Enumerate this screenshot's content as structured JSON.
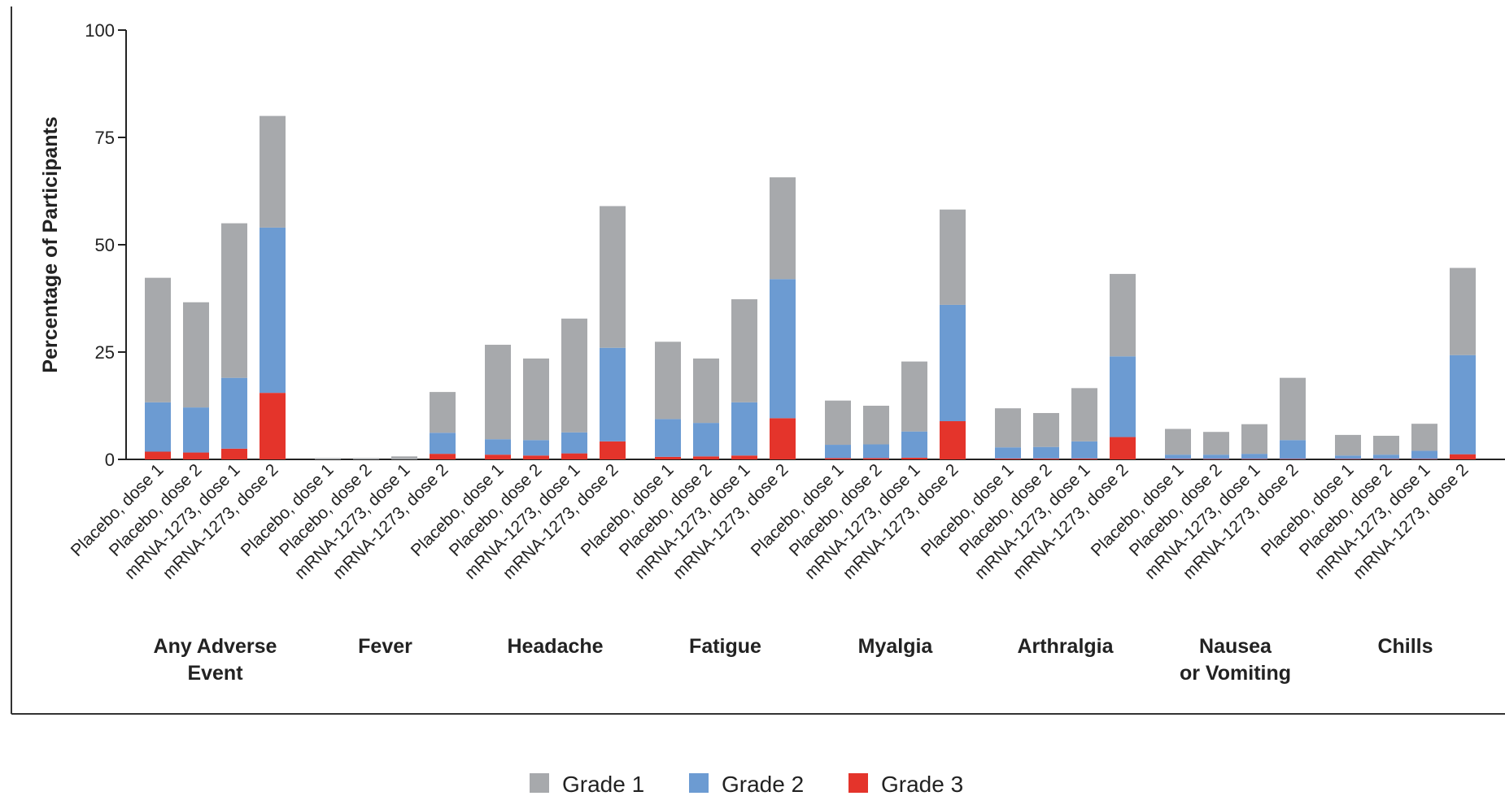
{
  "chart_data": {
    "type": "bar",
    "stacked": true,
    "ylabel": "Percentage of Participants",
    "ylim": [
      0,
      100
    ],
    "yticks": [
      0,
      25,
      50,
      75,
      100
    ],
    "grid": false,
    "legend_position": "bottom-center",
    "colors": {
      "Grade 1": "#a7a9ac",
      "Grade 2": "#6c9bd2",
      "Grade 3": "#e4342b"
    },
    "bar_labels": [
      "Placebo, dose 1",
      "Placebo, dose 2",
      "mRNA-1273, dose 1",
      "mRNA-1273, dose 2"
    ],
    "groups": [
      {
        "label": "Any Adverse Event",
        "bars": [
          {
            "label": "Placebo, dose 1",
            "grade1": 29,
            "grade2": 11.5,
            "grade3": 1.8
          },
          {
            "label": "Placebo, dose 2",
            "grade1": 24.5,
            "grade2": 10.5,
            "grade3": 1.6
          },
          {
            "label": "mRNA-1273, dose 1",
            "grade1": 36,
            "grade2": 16.5,
            "grade3": 2.5
          },
          {
            "label": "mRNA-1273, dose 2",
            "grade1": 26,
            "grade2": 38.5,
            "grade3": 15.5
          }
        ]
      },
      {
        "label": "Fever",
        "bars": [
          {
            "label": "Placebo, dose 1",
            "grade1": 0.3,
            "grade2": 0,
            "grade3": 0
          },
          {
            "label": "Placebo, dose 2",
            "grade1": 0.3,
            "grade2": 0,
            "grade3": 0
          },
          {
            "label": "mRNA-1273, dose 1",
            "grade1": 0.7,
            "grade2": 0,
            "grade3": 0
          },
          {
            "label": "mRNA-1273, dose 2",
            "grade1": 9.5,
            "grade2": 4.9,
            "grade3": 1.3
          }
        ]
      },
      {
        "label": "Headache",
        "bars": [
          {
            "label": "Placebo, dose 1",
            "grade1": 22,
            "grade2": 3.6,
            "grade3": 1.1
          },
          {
            "label": "Placebo, dose 2",
            "grade1": 19,
            "grade2": 3.6,
            "grade3": 0.9
          },
          {
            "label": "mRNA-1273, dose 1",
            "grade1": 26.5,
            "grade2": 4.9,
            "grade3": 1.4
          },
          {
            "label": "mRNA-1273, dose 2",
            "grade1": 33,
            "grade2": 21.8,
            "grade3": 4.2
          }
        ]
      },
      {
        "label": "Fatigue",
        "bars": [
          {
            "label": "Placebo, dose 1",
            "grade1": 18,
            "grade2": 8.8,
            "grade3": 0.6
          },
          {
            "label": "Placebo, dose 2",
            "grade1": 15,
            "grade2": 7.8,
            "grade3": 0.7
          },
          {
            "label": "mRNA-1273, dose 1",
            "grade1": 24,
            "grade2": 12.4,
            "grade3": 0.9
          },
          {
            "label": "mRNA-1273, dose 2",
            "grade1": 23.7,
            "grade2": 32.4,
            "grade3": 9.6
          }
        ]
      },
      {
        "label": "Myalgia",
        "bars": [
          {
            "label": "Placebo, dose 1",
            "grade1": 10.3,
            "grade2": 3.1,
            "grade3": 0.3
          },
          {
            "label": "Placebo, dose 2",
            "grade1": 9,
            "grade2": 3.2,
            "grade3": 0.3
          },
          {
            "label": "mRNA-1273, dose 1",
            "grade1": 16.3,
            "grade2": 6.1,
            "grade3": 0.4
          },
          {
            "label": "mRNA-1273, dose 2",
            "grade1": 22.2,
            "grade2": 27.1,
            "grade3": 8.9
          }
        ]
      },
      {
        "label": "Arthralgia",
        "bars": [
          {
            "label": "Placebo, dose 1",
            "grade1": 9.1,
            "grade2": 2.6,
            "grade3": 0.2
          },
          {
            "label": "Placebo, dose 2",
            "grade1": 7.9,
            "grade2": 2.7,
            "grade3": 0.2
          },
          {
            "label": "mRNA-1273, dose 1",
            "grade1": 12.4,
            "grade2": 4,
            "grade3": 0.2
          },
          {
            "label": "mRNA-1273, dose 2",
            "grade1": 19.2,
            "grade2": 18.8,
            "grade3": 5.2
          }
        ]
      },
      {
        "label": "Nausea or Vomiting",
        "bars": [
          {
            "label": "Placebo, dose 1",
            "grade1": 6,
            "grade2": 1,
            "grade3": 0.1
          },
          {
            "label": "Placebo, dose 2",
            "grade1": 5.3,
            "grade2": 1,
            "grade3": 0.1
          },
          {
            "label": "mRNA-1273, dose 1",
            "grade1": 6.9,
            "grade2": 1.2,
            "grade3": 0.1
          },
          {
            "label": "mRNA-1273, dose 2",
            "grade1": 14.5,
            "grade2": 4.4,
            "grade3": 0.1
          }
        ]
      },
      {
        "label": "Chills",
        "bars": [
          {
            "label": "Placebo, dose 1",
            "grade1": 4.8,
            "grade2": 0.8,
            "grade3": 0.1
          },
          {
            "label": "Placebo, dose 2",
            "grade1": 4.4,
            "grade2": 1,
            "grade3": 0.1
          },
          {
            "label": "mRNA-1273, dose 1",
            "grade1": 6.3,
            "grade2": 1.9,
            "grade3": 0.1
          },
          {
            "label": "mRNA-1273, dose 2",
            "grade1": 20.3,
            "grade2": 23.1,
            "grade3": 1.2
          }
        ]
      }
    ],
    "legend": [
      {
        "name": "Grade 1",
        "key": "grade1"
      },
      {
        "name": "Grade 2",
        "key": "grade2"
      },
      {
        "name": "Grade 3",
        "key": "grade3"
      }
    ]
  }
}
